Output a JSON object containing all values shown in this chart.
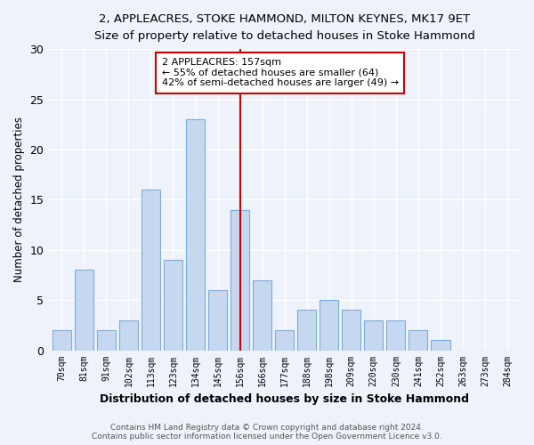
{
  "title1": "2, APPLEACRES, STOKE HAMMOND, MILTON KEYNES, MK17 9ET",
  "title2": "Size of property relative to detached houses in Stoke Hammond",
  "xlabel": "Distribution of detached houses by size in Stoke Hammond",
  "ylabel": "Number of detached properties",
  "categories": [
    "70sqm",
    "81sqm",
    "91sqm",
    "102sqm",
    "113sqm",
    "123sqm",
    "134sqm",
    "145sqm",
    "156sqm",
    "166sqm",
    "177sqm",
    "188sqm",
    "198sqm",
    "209sqm",
    "220sqm",
    "230sqm",
    "241sqm",
    "252sqm",
    "263sqm",
    "273sqm",
    "284sqm"
  ],
  "values": [
    2,
    8,
    2,
    3,
    16,
    9,
    23,
    6,
    14,
    7,
    2,
    4,
    5,
    4,
    3,
    3,
    2,
    1,
    0,
    0,
    0
  ],
  "bar_color": "#c5d8f0",
  "bar_edge_color": "#7facd6",
  "vline_color": "#cc0000",
  "annotation_text_line1": "2 APPLEACRES: 157sqm",
  "annotation_text_line2": "← 55% of detached houses are smaller (64)",
  "annotation_text_line3": "42% of semi-detached houses are larger (49) →",
  "footer1": "Contains HM Land Registry data © Crown copyright and database right 2024.",
  "footer2": "Contains public sector information licensed under the Open Government Licence v3.0.",
  "ylim": [
    0,
    30
  ],
  "yticks": [
    0,
    5,
    10,
    15,
    20,
    25,
    30
  ],
  "background_color": "#eef2fa",
  "grid_color": "#ffffff"
}
